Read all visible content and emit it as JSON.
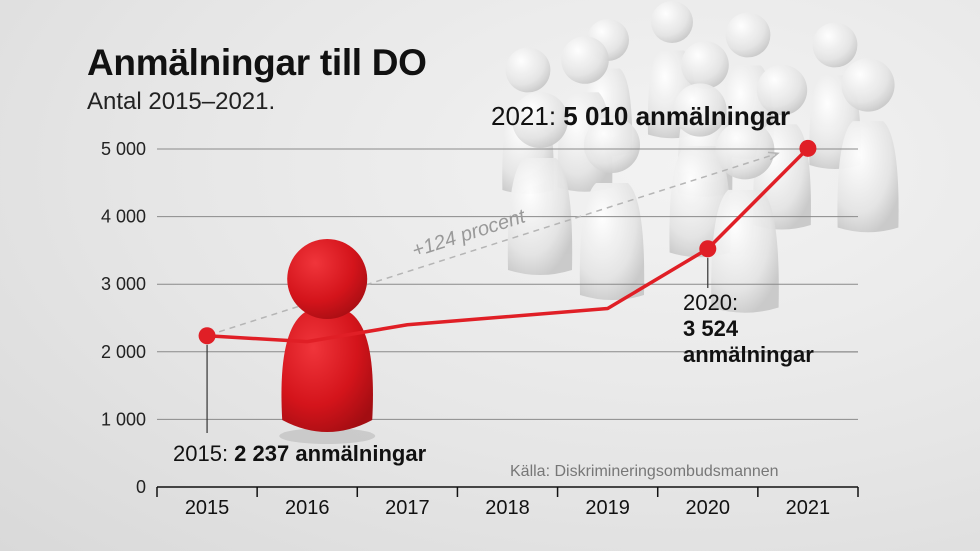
{
  "header": {
    "title": "Anmälningar till DO",
    "subtitle": "Antal 2015–2021."
  },
  "source": "Källa: Diskrimineringsombudsmannen",
  "colors": {
    "line": "#e01f26",
    "grid": "#8a8a8a",
    "arrow": "#b5b5b5"
  },
  "chart_data": {
    "type": "line",
    "title": "Anmälningar till DO",
    "subtitle": "Antal 2015–2021.",
    "categories": [
      "2015",
      "2016",
      "2017",
      "2018",
      "2019",
      "2020",
      "2021"
    ],
    "values": [
      2237,
      2150,
      2400,
      2520,
      2640,
      3524,
      5010
    ],
    "ylim": [
      0,
      5000
    ],
    "yticks": [
      0,
      1000,
      2000,
      3000,
      4000,
      5000
    ],
    "ytick_labels": [
      "0",
      "1 000",
      "2 000",
      "3 000",
      "4 000",
      "5 000"
    ],
    "grid": true,
    "highlighted_points": [
      0,
      5,
      6
    ],
    "growth_label": "+124 procent",
    "annotations": {
      "a2015": {
        "prefix": "2015: ",
        "value": "2 237 anmälningar"
      },
      "a2020": {
        "prefix": "2020:",
        "value": "3 524",
        "unit": "anmälningar"
      },
      "a2021": {
        "prefix": "2021: ",
        "value": "5 010 anmälningar"
      }
    }
  }
}
